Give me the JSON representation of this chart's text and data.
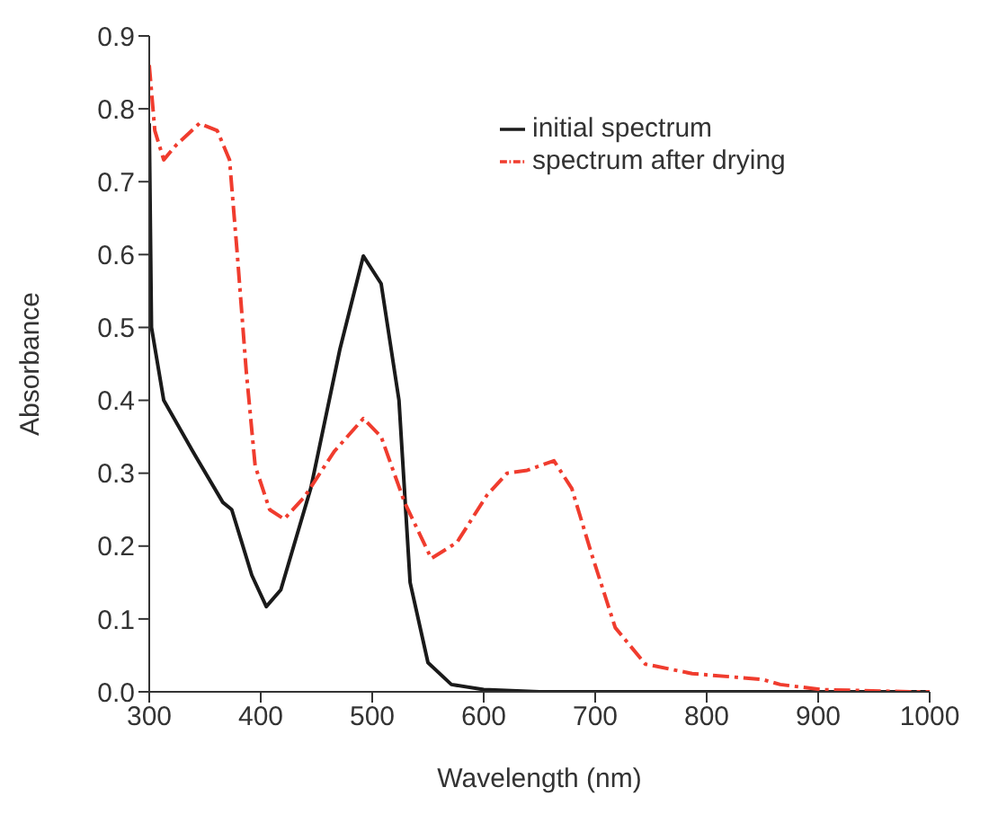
{
  "chart_data": {
    "type": "line",
    "xlabel": "Wavelength (nm)",
    "ylabel": "Absorbance",
    "xlim": [
      300,
      1000
    ],
    "ylim": [
      0,
      0.9
    ],
    "xticks": [
      300,
      400,
      500,
      600,
      700,
      800,
      900,
      1000
    ],
    "yticks": [
      {
        "value": 0,
        "label": "0.0"
      },
      0.1,
      0.2,
      0.3,
      0.4,
      0.5,
      0.6,
      0.7,
      0.8,
      0.9
    ],
    "grid": false,
    "legend": "top right",
    "marker": "none",
    "series": [
      {
        "name": "initial spectrum",
        "color": "#1a1a1a",
        "line_style": "solid",
        "x": [
          300,
          302,
          313,
          339,
          366,
          374,
          382,
          392,
          405,
          418,
          445,
          471,
          492,
          508,
          524,
          534,
          550,
          571,
          600,
          650,
          700,
          800,
          900,
          1000
        ],
        "values": [
          0.78,
          0.5,
          0.4,
          0.33,
          0.26,
          0.25,
          0.21,
          0.16,
          0.117,
          0.14,
          0.28,
          0.47,
          0.598,
          0.56,
          0.4,
          0.15,
          0.04,
          0.01,
          0.003,
          0,
          0,
          0,
          0,
          0
        ]
      },
      {
        "name": "spectrum after drying",
        "color": "#f03c2e",
        "line_style": "dashed",
        "x": [
          300,
          305,
          313,
          324,
          345,
          361,
          372,
          379,
          387,
          395,
          408,
          421,
          439,
          466,
          492,
          508,
          529,
          553,
          576,
          603,
          621,
          639,
          663,
          679,
          697,
          718,
          745,
          787,
          850,
          866,
          903,
          982,
          1000
        ],
        "values": [
          0.86,
          0.77,
          0.73,
          0.75,
          0.78,
          0.77,
          0.73,
          0.6,
          0.44,
          0.31,
          0.25,
          0.237,
          0.267,
          0.33,
          0.375,
          0.35,
          0.26,
          0.183,
          0.205,
          0.27,
          0.3,
          0.304,
          0.317,
          0.279,
          0.188,
          0.088,
          0.038,
          0.025,
          0.017,
          0.01,
          0.003,
          0,
          0
        ]
      }
    ]
  }
}
